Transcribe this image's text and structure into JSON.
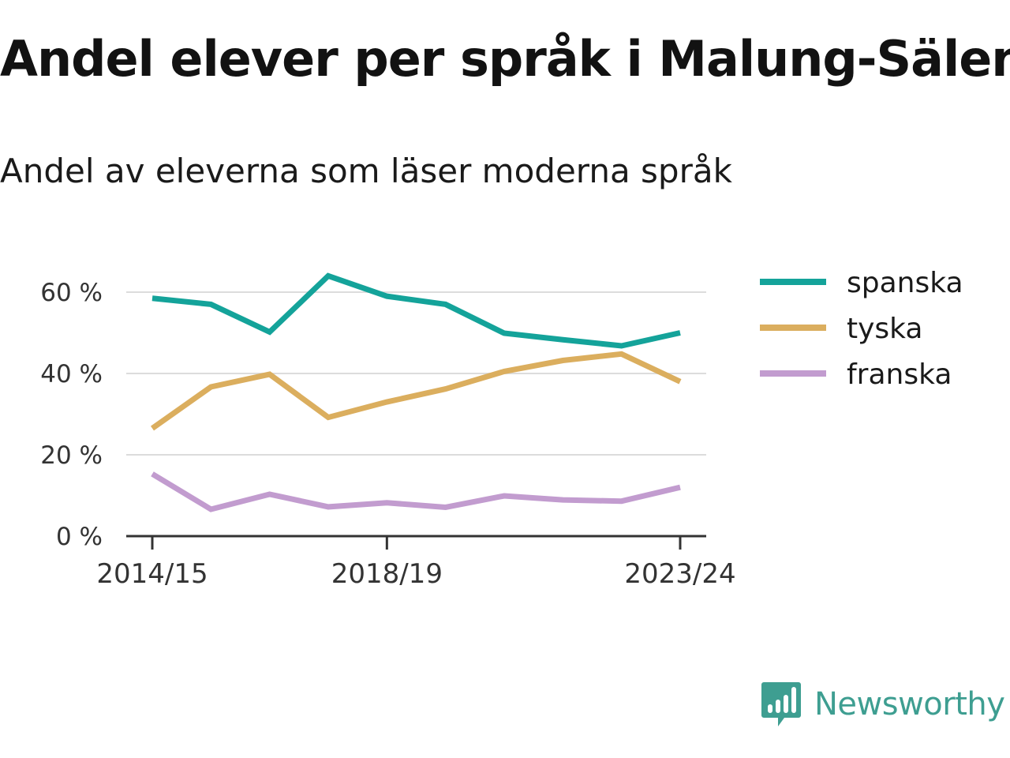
{
  "title": "Andel elever per språk i Malung-Sälen",
  "subtitle": "Andel av eleverna som läser moderna språk",
  "brand": {
    "name": "Newsworthy",
    "icon": "newsworthy-logo-icon",
    "color": "#3e9e91"
  },
  "chart_data": {
    "type": "line",
    "title": "Andel elever per språk i Malung-Sälen",
    "subtitle": "Andel av eleverna som läser moderna språk",
    "x": [
      "2014/15",
      "2015/16",
      "2016/17",
      "2017/18",
      "2018/19",
      "2019/20",
      "2020/21",
      "2021/22",
      "2022/23",
      "2023/24"
    ],
    "x_tick_labels": [
      "2014/15",
      "2018/19",
      "2023/24"
    ],
    "y_ticks": [
      0,
      20,
      40,
      60
    ],
    "y_tick_labels": [
      "0 %",
      "20 %",
      "40 %",
      "60 %"
    ],
    "ylim": [
      0,
      66
    ],
    "grid": true,
    "legend_position": "right",
    "series": [
      {
        "name": "spanska",
        "color": "#14a39a",
        "values": [
          58.5,
          57,
          50.2,
          64,
          59,
          57,
          49.9,
          48.3,
          46.8,
          50
        ]
      },
      {
        "name": "tyska",
        "color": "#dbae5e",
        "values": [
          26.5,
          36.7,
          39.8,
          29.2,
          33,
          36.2,
          40.5,
          43.2,
          44.8,
          38
        ]
      },
      {
        "name": "franska",
        "color": "#c29ccf",
        "values": [
          15.3,
          6.6,
          10.3,
          7.2,
          8.2,
          7.1,
          9.9,
          8.9,
          8.6,
          12
        ]
      }
    ]
  }
}
